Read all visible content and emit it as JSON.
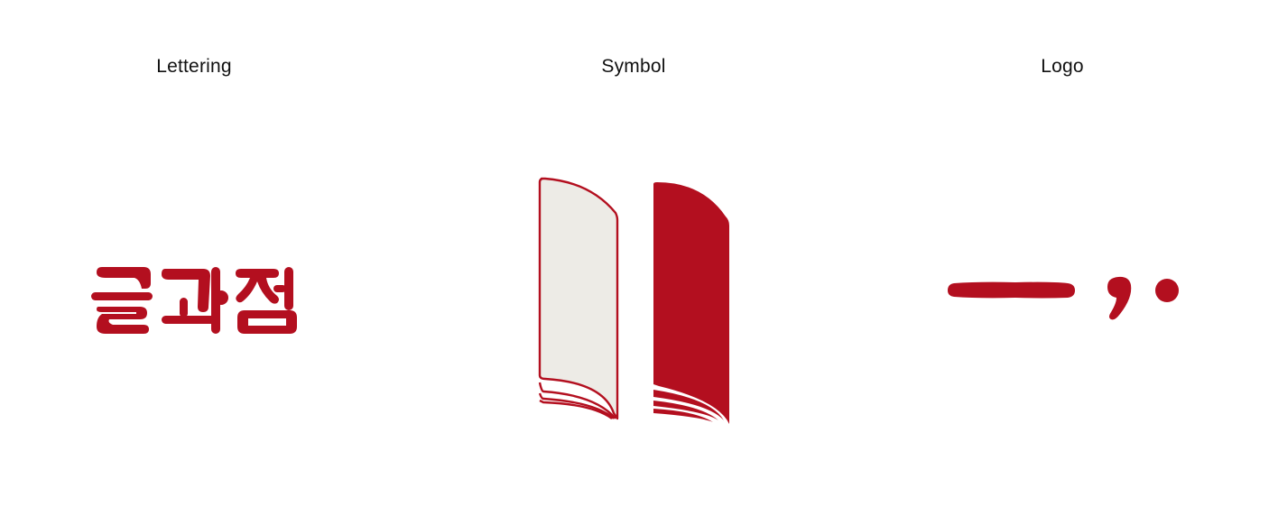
{
  "sections": [
    {
      "label": "Lettering",
      "artwork": "geulgwajeom-lettering"
    },
    {
      "label": "Symbol",
      "artwork": "open-book-pages-symbol"
    },
    {
      "label": "Logo",
      "artwork": "dash-comma-dot-logo"
    }
  ],
  "colors": {
    "brand_red": "#b30f1f",
    "page_cream": "#edebe6",
    "text": "#111111",
    "background": "#ffffff"
  },
  "lettering": {
    "text": "글과점"
  }
}
